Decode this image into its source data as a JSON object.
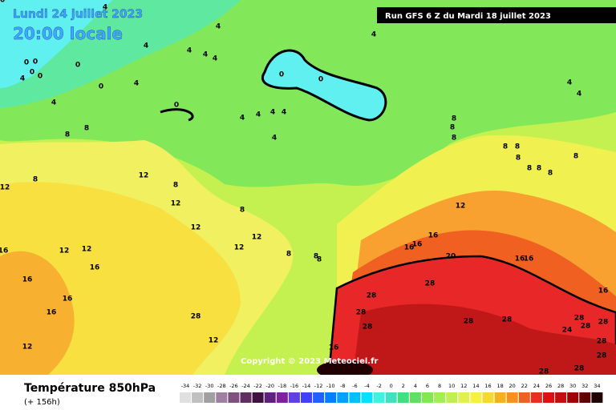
{
  "header": {
    "date": "Lundi 24 juillet 2023",
    "time": "20:00 locale",
    "run": "Run GFS 6 Z du Mardi 18 juillet 2023"
  },
  "copyright": "Copyright © 2023 Meteociel.fr",
  "footer": {
    "title": "Température 850hPa",
    "subtitle": "(+ 156h)"
  },
  "legend": {
    "labels": [
      -34,
      -32,
      -30,
      -28,
      -26,
      -24,
      -22,
      -20,
      -18,
      -16,
      -14,
      -12,
      -10,
      -8,
      -6,
      -4,
      -2,
      0,
      2,
      4,
      6,
      8,
      10,
      12,
      14,
      16,
      18,
      20,
      22,
      24,
      26,
      28,
      30,
      32,
      34
    ]
  },
  "map": {
    "labels": [
      4,
      4,
      4,
      4,
      4,
      4,
      0,
      0,
      0,
      0,
      0,
      4,
      0,
      4,
      0,
      0,
      4,
      4,
      4,
      0,
      4,
      4,
      4,
      4,
      4,
      4,
      8,
      8,
      8,
      8,
      8,
      8,
      8,
      8,
      8,
      8,
      8,
      8,
      12,
      8,
      8,
      12,
      12,
      8,
      12,
      12,
      12,
      12,
      12,
      12,
      16,
      16,
      8,
      8,
      8,
      16,
      16,
      16,
      16,
      16,
      16,
      20,
      16,
      16,
      16,
      28,
      28,
      28,
      28,
      28,
      28,
      24,
      28,
      28,
      28,
      28,
      28,
      28,
      28,
      28,
      12,
      12,
      16,
      20
    ]
  }
}
